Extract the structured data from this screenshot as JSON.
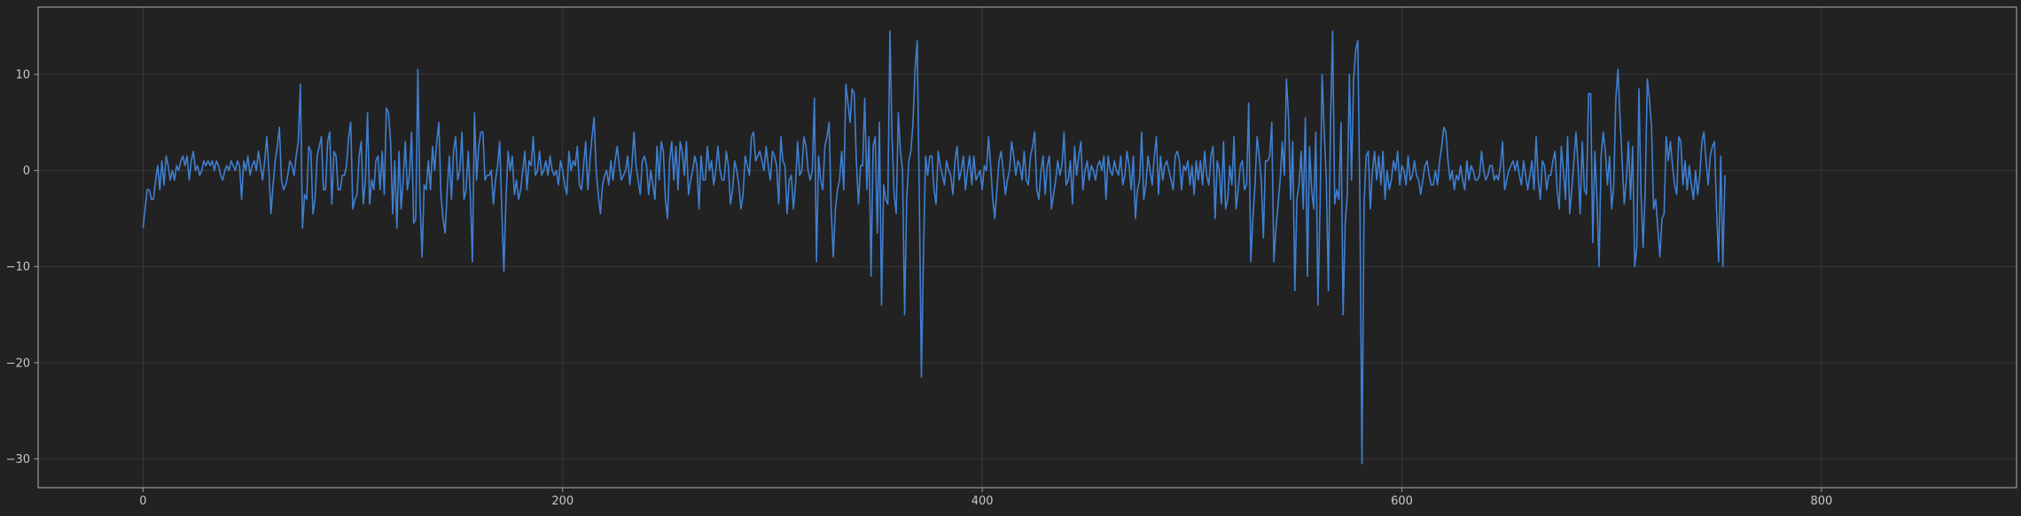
{
  "colors": {
    "background": "#222222",
    "grid": "#3a3a3a",
    "frame": "#9a9a9a",
    "tick_text": "#c8c8c8",
    "series": "#3f7fd1"
  },
  "chart_data": {
    "type": "line",
    "title": "",
    "xlabel": "",
    "ylabel": "",
    "xlim": [
      -50,
      893
    ],
    "ylim": [
      -33,
      17
    ],
    "grid": true,
    "x_ticks": [
      0,
      200,
      400,
      600,
      800
    ],
    "y_ticks": [
      10,
      0,
      -10,
      -20,
      -30
    ],
    "x_tick_labels": [
      "0",
      "200",
      "400",
      "600",
      "800"
    ],
    "y_tick_labels": [
      "10",
      "0",
      "−10",
      "−20",
      "−30"
    ],
    "series": [
      {
        "x_start": 0,
        "x_step": 1,
        "values": [
          -6.0,
          -4.0,
          -2.0,
          -2.0,
          -3.0,
          -3.0,
          -1.0,
          0.5,
          -2.0,
          1.0,
          -1.5,
          1.5,
          0.5,
          -1.0,
          0.0,
          -1.0,
          0.5,
          0.0,
          1.0,
          1.5,
          0.5,
          1.5,
          -1.0,
          1.0,
          2.0,
          0.0,
          0.5,
          -0.5,
          0.0,
          1.0,
          0.5,
          1.0,
          0.5,
          1.0,
          0.0,
          1.0,
          0.5,
          -0.5,
          -1.0,
          0.0,
          0.5,
          0.0,
          1.0,
          0.5,
          0.0,
          1.0,
          0.5,
          -3.0,
          1.0,
          0.0,
          1.5,
          -0.5,
          0.5,
          1.0,
          0.0,
          2.0,
          0.5,
          -1.0,
          1.0,
          3.5,
          0.0,
          -4.5,
          -1.5,
          1.0,
          2.5,
          4.5,
          -1.0,
          -2.0,
          -1.5,
          -0.5,
          1.0,
          0.5,
          -0.5,
          1.5,
          3.0,
          9.0,
          -6.0,
          -2.5,
          -3.0,
          2.5,
          2.0,
          -4.5,
          -3.0,
          1.5,
          2.5,
          3.5,
          -2.0,
          -2.0,
          3.0,
          4.0,
          -3.5,
          2.0,
          1.5,
          -2.0,
          -2.0,
          -0.5,
          -0.5,
          0.5,
          3.5,
          5.0,
          -4.0,
          -3.0,
          -2.5,
          1.5,
          3.0,
          -3.5,
          -1.0,
          6.0,
          -3.5,
          -1.0,
          -2.0,
          1.0,
          1.5,
          -2.0,
          2.0,
          -2.5,
          6.5,
          6.0,
          3.0,
          -4.5,
          1.0,
          -6.0,
          2.0,
          -4.0,
          -1.0,
          3.0,
          -2.0,
          -0.5,
          4.0,
          -5.5,
          -5.0,
          10.5,
          -3.0,
          -9.0,
          -1.5,
          -2.0,
          1.0,
          -2.0,
          2.5,
          0.0,
          3.0,
          5.0,
          -2.5,
          -5.0,
          -6.5,
          -2.0,
          1.5,
          -3.0,
          2.0,
          3.5,
          -1.0,
          0.0,
          4.0,
          -3.0,
          -2.0,
          2.0,
          -2.5,
          -9.5,
          6.0,
          -1.0,
          2.5,
          4.0,
          4.0,
          -1.0,
          -0.5,
          -0.5,
          0.0,
          -3.5,
          -1.0,
          0.5,
          3.0,
          -4.0,
          -10.5,
          -3.0,
          2.0,
          0.0,
          1.5,
          -2.5,
          -1.0,
          -3.0,
          -2.0,
          0.0,
          2.0,
          -2.0,
          1.0,
          0.5,
          3.5,
          -0.5,
          0.0,
          2.0,
          -0.5,
          0.0,
          1.0,
          -0.5,
          1.5,
          0.0,
          -0.5,
          0.0,
          -1.5,
          1.0,
          0.0,
          -1.5,
          -2.5,
          2.0,
          0.0,
          1.0,
          0.5,
          2.5,
          -1.5,
          -2.0,
          0.5,
          3.0,
          -2.0,
          1.0,
          3.5,
          5.5,
          0.0,
          -2.5,
          -4.5,
          -1.5,
          -0.5,
          0.0,
          -1.5,
          1.0,
          -1.0,
          1.0,
          2.5,
          0.5,
          -1.0,
          -0.5,
          0.0,
          1.5,
          -1.5,
          0.5,
          4.0,
          0.5,
          -1.0,
          -2.5,
          1.0,
          1.5,
          0.5,
          -2.5,
          0.0,
          -1.5,
          -3.0,
          2.5,
          -1.0,
          3.0,
          2.0,
          -3.0,
          -5.0,
          1.0,
          3.0,
          -1.0,
          2.5,
          -2.0,
          3.0,
          2.0,
          -0.5,
          3.0,
          -2.5,
          -1.0,
          0.0,
          1.5,
          0.5,
          -4.0,
          1.5,
          -1.0,
          -1.0,
          2.5,
          0.0,
          1.0,
          -1.5,
          0.0,
          2.5,
          0.0,
          -1.0,
          -1.0,
          2.0,
          0.5,
          -3.5,
          -2.0,
          1.0,
          0.0,
          -1.5,
          -4.0,
          -2.5,
          1.5,
          0.5,
          -0.5,
          3.5,
          4.0,
          1.0,
          1.5,
          2.0,
          1.0,
          0.0,
          2.5,
          0.5,
          -1.0,
          2.0,
          1.5,
          0.5,
          -3.5,
          3.5,
          1.0,
          0.5,
          -4.5,
          -1.0,
          -0.5,
          -4.0,
          -1.5,
          3.0,
          -0.5,
          0.0,
          3.5,
          2.5,
          0.0,
          -1.0,
          0.0,
          7.5,
          -9.5,
          1.5,
          -1.0,
          -2.0,
          2.5,
          3.5,
          5.0,
          -4.0,
          -9.0,
          -4.0,
          -2.0,
          -1.0,
          2.0,
          -2.0,
          9.0,
          7.0,
          5.0,
          8.5,
          8.0,
          1.0,
          -3.5,
          0.5,
          0.5,
          7.5,
          -2.0,
          3.5,
          -11.0,
          2.5,
          3.5,
          -6.5,
          5.0,
          -14.0,
          -1.5,
          -3.0,
          -3.5,
          14.5,
          3.5,
          -2.5,
          -4.5,
          6.0,
          2.0,
          0.0,
          -15.0,
          -3.0,
          1.0,
          2.0,
          5.0,
          10.5,
          13.5,
          -2.5,
          -21.5,
          -8.5,
          1.5,
          -0.5,
          1.5,
          1.5,
          -2.0,
          -3.5,
          2.0,
          0.5,
          -0.5,
          -1.5,
          1.0,
          0.0,
          -0.5,
          -2.5,
          1.0,
          2.5,
          -1.0,
          0.0,
          1.5,
          -2.0,
          0.0,
          1.5,
          -1.5,
          1.5,
          -1.0,
          -0.5,
          0.0,
          -2.0,
          0.5,
          0.0,
          3.5,
          0.5,
          -3.0,
          -5.0,
          -2.0,
          1.0,
          2.0,
          0.0,
          -2.5,
          -1.0,
          0.0,
          3.0,
          1.5,
          -0.5,
          1.0,
          0.5,
          -1.0,
          2.0,
          -1.0,
          -1.5,
          1.5,
          2.5,
          4.0,
          -2.0,
          -3.0,
          0.0,
          1.5,
          -2.5,
          0.5,
          1.5,
          -4.0,
          -2.5,
          -1.0,
          1.0,
          -0.5,
          0.5,
          4.0,
          -1.5,
          -1.0,
          1.0,
          -3.5,
          2.5,
          -0.5,
          1.5,
          3.0,
          -2.0,
          0.0,
          1.0,
          -1.0,
          0.5,
          0.0,
          -1.0,
          0.5,
          1.0,
          0.0,
          1.5,
          -3.0,
          1.5,
          0.0,
          -0.5,
          1.0,
          0.0,
          -0.5,
          1.5,
          -1.5,
          -0.5,
          2.0,
          0.5,
          -2.0,
          1.5,
          -5.0,
          -2.0,
          -1.0,
          4.0,
          -3.0,
          -1.5,
          1.5,
          0.0,
          -1.5,
          1.5,
          3.5,
          -2.5,
          1.5,
          -1.0,
          0.5,
          1.0,
          0.0,
          -1.0,
          -2.0,
          1.5,
          2.0,
          1.0,
          -2.0,
          0.5,
          0.0,
          1.0,
          -1.5,
          0.5,
          -2.5,
          1.0,
          -1.0,
          1.0,
          -1.5,
          2.0,
          -0.5,
          -1.5,
          1.5,
          2.5,
          -5.0,
          1.0,
          0.0,
          -3.5,
          3.0,
          -4.0,
          -3.0,
          0.5,
          -1.5,
          3.5,
          -4.0,
          -2.0,
          0.5,
          1.0,
          -2.0,
          -1.5,
          7.0,
          -9.5,
          -5.0,
          -1.5,
          3.5,
          1.5,
          -1.0,
          -7.0,
          1.0,
          1.0,
          1.5,
          5.0,
          -9.5,
          -6.0,
          -3.5,
          -1.0,
          3.0,
          -0.5,
          9.5,
          5.5,
          -3.0,
          3.0,
          -12.5,
          -3.0,
          -1.5,
          2.0,
          -4.0,
          5.5,
          -11.0,
          2.5,
          -2.0,
          -4.0,
          4.0,
          -14.0,
          -4.0,
          10.0,
          4.0,
          -1.0,
          -12.5,
          5.0,
          14.5,
          -3.5,
          -2.0,
          -3.0,
          5.0,
          -15.0,
          -5.5,
          -2.5,
          10.0,
          -1.0,
          9.5,
          12.5,
          13.5,
          -3.0,
          -30.5,
          -3.5,
          1.5,
          2.0,
          -4.0,
          0.0,
          2.0,
          -1.0,
          1.5,
          -1.5,
          2.0,
          -3.0,
          0.0,
          -2.0,
          -1.0,
          1.0,
          0.0,
          2.0,
          -1.5,
          0.5,
          0.0,
          -1.5,
          1.5,
          -1.0,
          -0.5,
          1.0,
          -0.5,
          -1.0,
          -2.5,
          -1.0,
          0.5,
          1.0,
          -0.5,
          -1.5,
          -1.5,
          0.0,
          -1.5,
          1.0,
          2.5,
          4.5,
          4.0,
          1.0,
          -1.0,
          0.0,
          -2.0,
          -0.5,
          -1.0,
          0.5,
          -1.0,
          -2.0,
          1.0,
          -1.0,
          0.5,
          0.0,
          -1.0,
          -1.0,
          -0.5,
          2.0,
          0.0,
          -1.0,
          -0.5,
          0.5,
          0.5,
          -1.0,
          -0.5,
          -1.0,
          0.5,
          3.0,
          -2.0,
          -1.0,
          0.0,
          0.5,
          1.0,
          0.0,
          1.0,
          -0.5,
          -1.5,
          1.0,
          -0.5,
          -2.0,
          -0.5,
          1.0,
          -2.0,
          3.5,
          -1.0,
          -3.0,
          1.0,
          0.5,
          -2.0,
          -0.5,
          -0.5,
          1.0,
          2.0,
          -2.0,
          -4.0,
          2.5,
          0.0,
          -3.0,
          3.5,
          -4.5,
          -2.0,
          1.0,
          4.0,
          0.5,
          -4.5,
          3.0,
          -2.0,
          -2.5,
          8.0,
          8.0,
          -7.5,
          2.0,
          -3.0,
          -10.0,
          1.5,
          4.0,
          2.0,
          -1.5,
          1.5,
          -4.0,
          -1.5,
          7.5,
          10.5,
          5.5,
          1.0,
          -3.5,
          -1.0,
          3.0,
          -3.0,
          2.5,
          -10.0,
          -8.0,
          8.5,
          -2.5,
          -8.0,
          -2.0,
          9.5,
          7.5,
          4.5,
          -4.0,
          -3.0,
          -6.0,
          -9.0,
          -5.0,
          -4.5,
          3.5,
          1.0,
          3.0,
          0.5,
          -1.5,
          -2.5,
          3.5,
          3.0,
          -1.5,
          1.0,
          -2.0,
          0.5,
          -1.5,
          -3.0,
          0.0,
          -2.5,
          -0.5,
          3.0,
          4.0,
          1.0,
          -1.5,
          1.5,
          2.5,
          3.0,
          -4.0,
          -9.5,
          1.5,
          -10.0,
          -0.5
        ]
      }
    ]
  }
}
